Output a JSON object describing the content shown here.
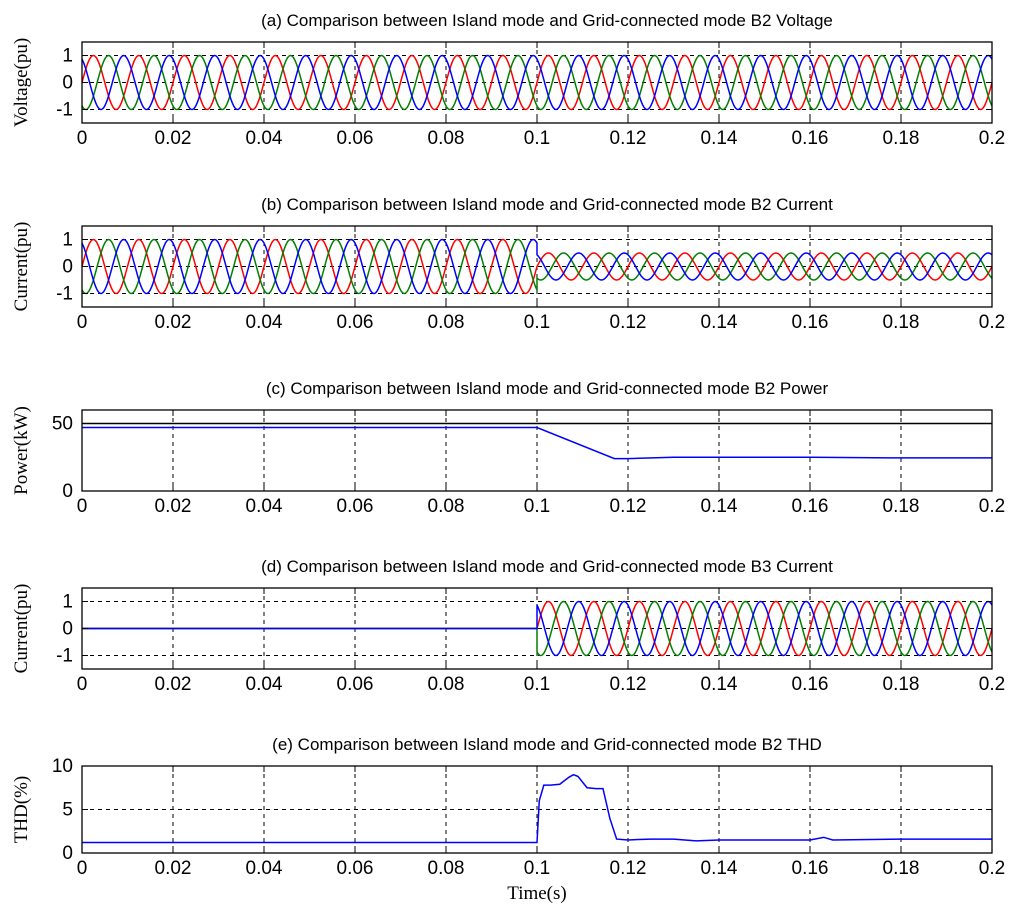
{
  "chart_data": [
    {
      "type": "line",
      "title": "(a)  Comparison between Island mode and Grid-connected mode B2 Voltage",
      "ylabel": "Voltage(pu)",
      "xlabel": "",
      "xlim": [
        0,
        0.2
      ],
      "ylim": [
        -1.5,
        1.5
      ],
      "xticks": [
        "0",
        "0.02",
        "0.04",
        "0.06",
        "0.08",
        "0.1",
        "0.12",
        "0.14",
        "0.16",
        "0.18",
        "0.2"
      ],
      "yticks": [
        {
          "v": -1,
          "label": "-1"
        },
        {
          "v": 0,
          "label": "0"
        },
        {
          "v": 1,
          "label": "1"
        }
      ],
      "grid": true,
      "series": [
        {
          "color": "#ff0000",
          "kind": "sine",
          "frequency_hz": 100,
          "phase_deg": 0,
          "segments": [
            {
              "t": [
                0,
                0.2
              ],
              "amplitude": 1.0
            }
          ]
        },
        {
          "color": "#008000",
          "kind": "sine",
          "frequency_hz": 100,
          "phase_deg": -120,
          "segments": [
            {
              "t": [
                0,
                0.2
              ],
              "amplitude": 1.0
            }
          ]
        },
        {
          "color": "#0000ff",
          "kind": "sine",
          "frequency_hz": 100,
          "phase_deg": 120,
          "segments": [
            {
              "t": [
                0,
                0.2
              ],
              "amplitude": 1.0
            }
          ]
        }
      ]
    },
    {
      "type": "line",
      "title": "(b)  Comparison between Island mode and Grid-connected mode B2 Current",
      "ylabel": "Current(pu)",
      "xlabel": "",
      "xlim": [
        0,
        0.2
      ],
      "ylim": [
        -1.5,
        1.5
      ],
      "xticks": [
        "0",
        "0.02",
        "0.04",
        "0.06",
        "0.08",
        "0.1",
        "0.12",
        "0.14",
        "0.16",
        "0.18",
        "0.2"
      ],
      "yticks": [
        {
          "v": -1,
          "label": "-1"
        },
        {
          "v": 0,
          "label": "0"
        },
        {
          "v": 1,
          "label": "1"
        }
      ],
      "grid": true,
      "series": [
        {
          "color": "#ff0000",
          "kind": "sine",
          "frequency_hz": 100,
          "phase_deg": 0,
          "segments": [
            {
              "t": [
                0,
                0.1
              ],
              "amplitude": 1.0
            },
            {
              "t": [
                0.1,
                0.2
              ],
              "amplitude": 0.5
            }
          ]
        },
        {
          "color": "#008000",
          "kind": "sine",
          "frequency_hz": 100,
          "phase_deg": -120,
          "segments": [
            {
              "t": [
                0,
                0.1
              ],
              "amplitude": 1.0
            },
            {
              "t": [
                0.1,
                0.2
              ],
              "amplitude": 0.5
            }
          ]
        },
        {
          "color": "#0000ff",
          "kind": "sine",
          "frequency_hz": 100,
          "phase_deg": 120,
          "segments": [
            {
              "t": [
                0,
                0.1
              ],
              "amplitude": 1.0
            },
            {
              "t": [
                0.1,
                0.2
              ],
              "amplitude": 0.5
            }
          ]
        }
      ]
    },
    {
      "type": "line",
      "title": "(c)  Comparison between Island mode and Grid-connected mode B2 Power",
      "ylabel": "Power(kW)",
      "xlabel": "",
      "xlim": [
        0,
        0.2
      ],
      "ylim": [
        0,
        60
      ],
      "xticks": [
        "0",
        "0.02",
        "0.04",
        "0.06",
        "0.08",
        "0.1",
        "0.12",
        "0.14",
        "0.16",
        "0.18",
        "0.2"
      ],
      "yticks": [
        {
          "v": 0,
          "label": "0"
        },
        {
          "v": 50,
          "label": "50"
        }
      ],
      "grid": true,
      "series": [
        {
          "color": "#000000",
          "kind": "points",
          "x": [
            0,
            0.2
          ],
          "y": [
            50,
            50
          ]
        },
        {
          "color": "#0000ff",
          "kind": "points",
          "x": [
            0,
            0.1,
            0.117,
            0.12,
            0.13,
            0.14,
            0.16,
            0.18,
            0.2
          ],
          "y": [
            47,
            47,
            24,
            24,
            25,
            25,
            25,
            24.5,
            24.5
          ]
        }
      ]
    },
    {
      "type": "line",
      "title": "(d)  Comparison between Island mode and Grid-connected mode B3 Current",
      "ylabel": "Current(pu)",
      "xlabel": "",
      "xlim": [
        0,
        0.2
      ],
      "ylim": [
        -1.5,
        1.5
      ],
      "xticks": [
        "0",
        "0.02",
        "0.04",
        "0.06",
        "0.08",
        "0.1",
        "0.12",
        "0.14",
        "0.16",
        "0.18",
        "0.2"
      ],
      "yticks": [
        {
          "v": -1,
          "label": "-1"
        },
        {
          "v": 0,
          "label": "0"
        },
        {
          "v": 1,
          "label": "1"
        }
      ],
      "grid": true,
      "series": [
        {
          "color": "#ff0000",
          "kind": "sine",
          "frequency_hz": 100,
          "phase_deg": 0,
          "segments": [
            {
              "t": [
                0,
                0.1
              ],
              "amplitude": 0.0
            },
            {
              "t": [
                0.1,
                0.2
              ],
              "amplitude": 1.0
            }
          ]
        },
        {
          "color": "#008000",
          "kind": "sine",
          "frequency_hz": 100,
          "phase_deg": -120,
          "segments": [
            {
              "t": [
                0,
                0.1
              ],
              "amplitude": 0.0
            },
            {
              "t": [
                0.1,
                0.2
              ],
              "amplitude": 1.0
            }
          ]
        },
        {
          "color": "#0000ff",
          "kind": "sine",
          "frequency_hz": 100,
          "phase_deg": 120,
          "segments": [
            {
              "t": [
                0,
                0.1
              ],
              "amplitude": 0.0
            },
            {
              "t": [
                0.1,
                0.2
              ],
              "amplitude": 1.0
            }
          ]
        }
      ]
    },
    {
      "type": "line",
      "title": "(e)  Comparison between Island mode and Grid-connected mode B2 THD",
      "ylabel": "THD(%)",
      "xlabel": "Time(s)",
      "xlim": [
        0,
        0.2
      ],
      "ylim": [
        0,
        10
      ],
      "xticks": [
        "0",
        "0.02",
        "0.04",
        "0.06",
        "0.08",
        "0.1",
        "0.12",
        "0.14",
        "0.16",
        "0.18",
        "0.2"
      ],
      "yticks": [
        {
          "v": 0,
          "label": "0"
        },
        {
          "v": 5,
          "label": "5"
        },
        {
          "v": 10,
          "label": "10"
        }
      ],
      "grid": true,
      "series": [
        {
          "color": "#0000ff",
          "kind": "points",
          "x": [
            0,
            0.1,
            0.1005,
            0.1015,
            0.103,
            0.105,
            0.107,
            0.108,
            0.109,
            0.111,
            0.113,
            0.1145,
            0.116,
            0.1175,
            0.12,
            0.125,
            0.13,
            0.135,
            0.14,
            0.15,
            0.16,
            0.163,
            0.165,
            0.18,
            0.2
          ],
          "y": [
            1.2,
            1.2,
            6.0,
            7.8,
            7.8,
            7.9,
            8.7,
            9.0,
            8.8,
            7.5,
            7.4,
            7.4,
            4.0,
            1.6,
            1.5,
            1.6,
            1.6,
            1.4,
            1.5,
            1.5,
            1.5,
            1.8,
            1.5,
            1.6,
            1.6
          ]
        }
      ]
    }
  ]
}
